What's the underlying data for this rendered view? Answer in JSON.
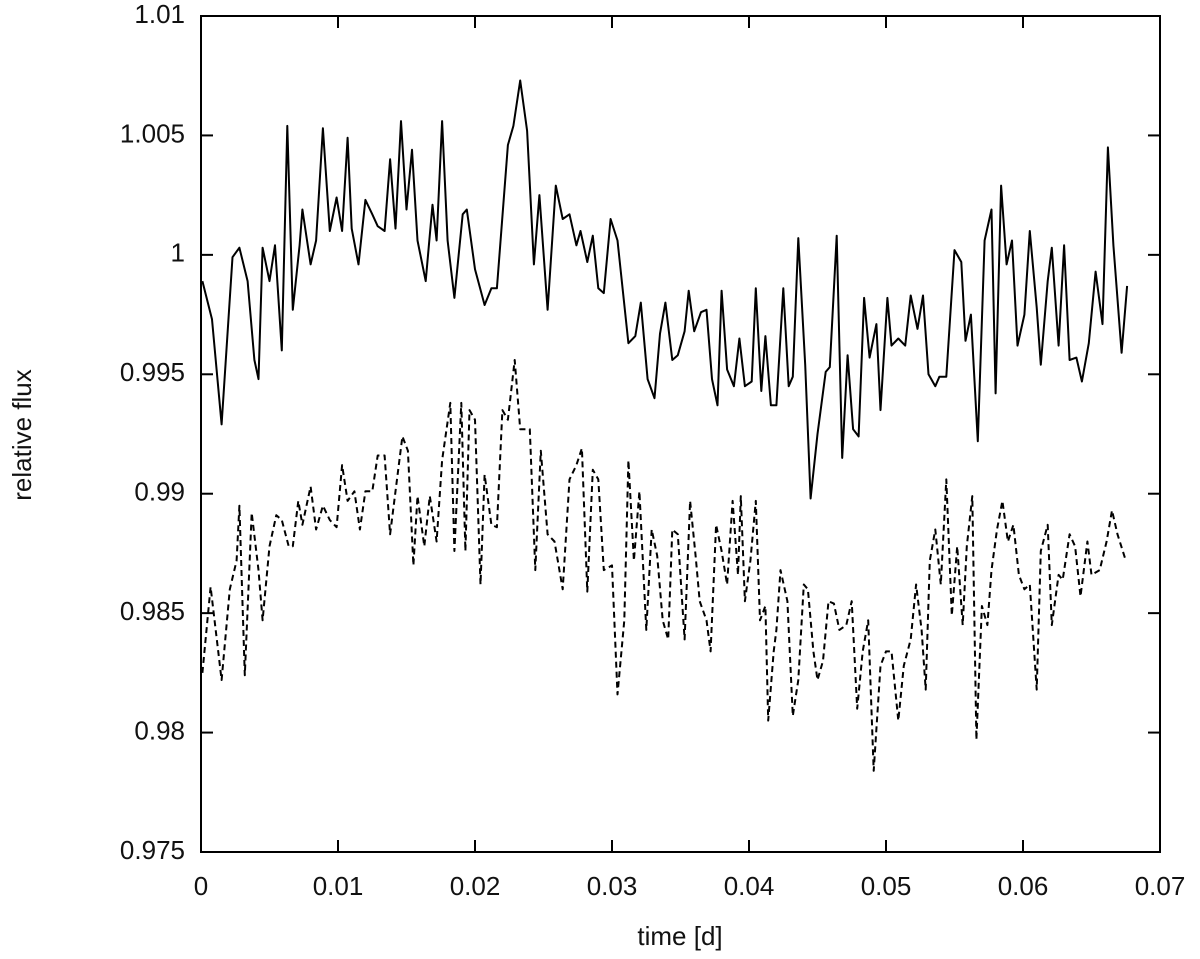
{
  "chart_data": {
    "type": "line",
    "xlabel": "time [d]",
    "ylabel": "relative flux",
    "xlim": [
      0,
      0.07
    ],
    "ylim": [
      0.975,
      1.01
    ],
    "xticks": [
      0,
      0.01,
      0.02,
      0.03,
      0.04,
      0.05,
      0.06,
      0.07
    ],
    "yticks": [
      0.975,
      0.98,
      0.985,
      0.99,
      0.995,
      1,
      1.005,
      1.01
    ],
    "series": [
      {
        "color": "#000000",
        "dashed": false,
        "x": [
          0.0001,
          0.0008,
          0.0015,
          0.0023,
          0.0028,
          0.0034,
          0.0039,
          0.0042,
          0.0045,
          0.005,
          0.0054,
          0.0059,
          0.0063,
          0.0067,
          0.0072,
          0.0074,
          0.008,
          0.0084,
          0.0089,
          0.0094,
          0.0099,
          0.0103,
          0.0107,
          0.011,
          0.0115,
          0.012,
          0.0125,
          0.0129,
          0.0134,
          0.0138,
          0.0142,
          0.0146,
          0.015,
          0.0154,
          0.0158,
          0.0164,
          0.0169,
          0.0172,
          0.0176,
          0.018,
          0.0185,
          0.0191,
          0.0194,
          0.02,
          0.0207,
          0.0212,
          0.0216,
          0.0224,
          0.0228,
          0.0233,
          0.0238,
          0.0243,
          0.0247,
          0.0253,
          0.0259,
          0.0264,
          0.0269,
          0.0274,
          0.0277,
          0.0282,
          0.0286,
          0.029,
          0.0294,
          0.0299,
          0.0304,
          0.0312,
          0.0317,
          0.0321,
          0.0326,
          0.0331,
          0.0335,
          0.0339,
          0.0344,
          0.0348,
          0.0353,
          0.0356,
          0.036,
          0.0365,
          0.0369,
          0.0373,
          0.0377,
          0.038,
          0.0384,
          0.0389,
          0.0393,
          0.0397,
          0.0402,
          0.0405,
          0.0409,
          0.0412,
          0.0416,
          0.042,
          0.0425,
          0.0429,
          0.0432,
          0.0436,
          0.0441,
          0.0445,
          0.045,
          0.0456,
          0.0459,
          0.0464,
          0.0468,
          0.0472,
          0.0476,
          0.048,
          0.0484,
          0.0488,
          0.0493,
          0.0496,
          0.0501,
          0.0504,
          0.0509,
          0.0514,
          0.0518,
          0.0523,
          0.0527,
          0.0531,
          0.0536,
          0.0539,
          0.0544,
          0.055,
          0.0555,
          0.0558,
          0.0562,
          0.0567,
          0.0572,
          0.0577,
          0.058,
          0.0584,
          0.0588,
          0.0592,
          0.0596,
          0.0601,
          0.0605,
          0.061,
          0.0613,
          0.0618,
          0.0621,
          0.0626,
          0.063,
          0.0634,
          0.0639,
          0.0643,
          0.0648,
          0.0653,
          0.0658,
          0.0662,
          0.0666,
          0.0672,
          0.0676
        ],
        "values": [
          0.9989,
          0.9973,
          0.9929,
          0.9999,
          1.0003,
          0.9989,
          0.9956,
          0.9948,
          1.0003,
          0.9989,
          1.0004,
          0.996,
          1.0054,
          0.9977,
          1.0004,
          1.0019,
          0.9996,
          1.0006,
          1.0053,
          1.001,
          1.0024,
          1.001,
          1.0049,
          1.0011,
          0.9996,
          1.0023,
          1.0017,
          1.0012,
          1.001,
          1.004,
          1.0011,
          1.0056,
          1.0019,
          1.0044,
          1.0006,
          0.9989,
          1.0021,
          1.0006,
          1.0056,
          1.0006,
          0.9982,
          1.0017,
          1.0019,
          0.9994,
          0.9979,
          0.9986,
          0.9986,
          1.0046,
          1.0054,
          1.0073,
          1.0052,
          0.9996,
          1.0025,
          0.9977,
          1.0029,
          1.0015,
          1.0017,
          1.0004,
          1.001,
          0.9997,
          1.0008,
          0.9986,
          0.9984,
          1.0015,
          1.0006,
          0.9963,
          0.9966,
          0.998,
          0.9948,
          0.994,
          0.9967,
          0.998,
          0.9956,
          0.9958,
          0.9968,
          0.9985,
          0.9968,
          0.9976,
          0.9977,
          0.9948,
          0.9937,
          0.9985,
          0.9952,
          0.9945,
          0.9965,
          0.9945,
          0.9947,
          0.9986,
          0.9943,
          0.9966,
          0.9937,
          0.9937,
          0.9986,
          0.9945,
          0.9949,
          1.0007,
          0.9954,
          0.9898,
          0.9925,
          0.9951,
          0.9953,
          1.0008,
          0.9915,
          0.9958,
          0.9927,
          0.9924,
          0.9982,
          0.9957,
          0.9971,
          0.9935,
          0.9982,
          0.9962,
          0.9965,
          0.9962,
          0.9983,
          0.9969,
          0.9983,
          0.995,
          0.9945,
          0.9949,
          0.9949,
          1.0002,
          0.9997,
          0.9964,
          0.9975,
          0.9922,
          1.0006,
          1.0019,
          0.9942,
          1.0029,
          0.9996,
          1.0006,
          0.9962,
          0.9975,
          1.001,
          0.9978,
          0.9954,
          0.9989,
          1.0003,
          0.9962,
          1.0004,
          0.9956,
          0.9957,
          0.9947,
          0.9963,
          0.9993,
          0.9971,
          1.0045,
          1.0004,
          0.9959,
          0.9987
        ]
      },
      {
        "color": "#000000",
        "dashed": true,
        "x": [
          0.0001,
          0.0007,
          0.0015,
          0.0021,
          0.0026,
          0.0028,
          0.0032,
          0.0037,
          0.0042,
          0.0045,
          0.005,
          0.0055,
          0.0059,
          0.0064,
          0.0067,
          0.0071,
          0.0074,
          0.008,
          0.0084,
          0.0089,
          0.0094,
          0.0099,
          0.0103,
          0.0107,
          0.0112,
          0.0116,
          0.012,
          0.0125,
          0.0129,
          0.0134,
          0.0138,
          0.0142,
          0.0147,
          0.0151,
          0.0155,
          0.0158,
          0.0163,
          0.0167,
          0.0172,
          0.0176,
          0.0182,
          0.0185,
          0.019,
          0.0193,
          0.0196,
          0.02,
          0.0204,
          0.0207,
          0.0212,
          0.0216,
          0.022,
          0.0224,
          0.0229,
          0.0233,
          0.024,
          0.0244,
          0.0248,
          0.0253,
          0.0258,
          0.0264,
          0.0269,
          0.0274,
          0.0278,
          0.0282,
          0.0286,
          0.029,
          0.0294,
          0.03,
          0.0304,
          0.0309,
          0.0312,
          0.0316,
          0.032,
          0.0325,
          0.0329,
          0.0333,
          0.0337,
          0.0341,
          0.0344,
          0.0348,
          0.0353,
          0.0357,
          0.0361,
          0.0364,
          0.0369,
          0.0372,
          0.0376,
          0.038,
          0.0384,
          0.0388,
          0.0392,
          0.0394,
          0.0397,
          0.0401,
          0.0405,
          0.0408,
          0.0412,
          0.0414,
          0.0418,
          0.042,
          0.0423,
          0.0428,
          0.0432,
          0.0436,
          0.044,
          0.0443,
          0.0447,
          0.045,
          0.0454,
          0.0458,
          0.0462,
          0.0466,
          0.0471,
          0.0475,
          0.0479,
          0.0483,
          0.0487,
          0.0491,
          0.0496,
          0.05,
          0.0504,
          0.0509,
          0.0513,
          0.0518,
          0.0522,
          0.0526,
          0.0529,
          0.0532,
          0.0536,
          0.054,
          0.0544,
          0.0548,
          0.0552,
          0.0556,
          0.0559,
          0.0563,
          0.0566,
          0.057,
          0.0574,
          0.0577,
          0.0581,
          0.0585,
          0.0589,
          0.0593,
          0.0597,
          0.0601,
          0.0605,
          0.061,
          0.0613,
          0.0618,
          0.0621,
          0.0626,
          0.0629,
          0.0634,
          0.0638,
          0.0642,
          0.0647,
          0.065,
          0.0656,
          0.0661,
          0.0665,
          0.0669,
          0.0675
        ],
        "values": [
          0.9825,
          0.9861,
          0.9822,
          0.986,
          0.9872,
          0.9895,
          0.9824,
          0.9892,
          0.9868,
          0.9847,
          0.9878,
          0.9891,
          0.9889,
          0.9878,
          0.9878,
          0.9897,
          0.9887,
          0.9903,
          0.9885,
          0.9895,
          0.9889,
          0.9886,
          0.9912,
          0.9897,
          0.9901,
          0.9885,
          0.9901,
          0.9901,
          0.9916,
          0.9916,
          0.9883,
          0.9901,
          0.9924,
          0.9918,
          0.987,
          0.9899,
          0.9878,
          0.9899,
          0.988,
          0.9914,
          0.9938,
          0.9876,
          0.9938,
          0.9876,
          0.9935,
          0.9931,
          0.9862,
          0.9908,
          0.9887,
          0.9886,
          0.9935,
          0.9931,
          0.9956,
          0.9927,
          0.9927,
          0.9868,
          0.9918,
          0.9883,
          0.988,
          0.986,
          0.9906,
          0.9912,
          0.9919,
          0.9859,
          0.991,
          0.9906,
          0.9868,
          0.987,
          0.9816,
          0.9847,
          0.9914,
          0.9872,
          0.9901,
          0.9843,
          0.9885,
          0.9874,
          0.9847,
          0.9839,
          0.9885,
          0.9883,
          0.9839,
          0.9897,
          0.9874,
          0.9855,
          0.9847,
          0.9834,
          0.9887,
          0.9876,
          0.9862,
          0.9897,
          0.9866,
          0.9899,
          0.9855,
          0.9872,
          0.9897,
          0.9847,
          0.9853,
          0.9805,
          0.9834,
          0.9843,
          0.9868,
          0.9855,
          0.9807,
          0.9822,
          0.9862,
          0.986,
          0.9834,
          0.9822,
          0.983,
          0.9855,
          0.9854,
          0.9843,
          0.9845,
          0.9855,
          0.981,
          0.9834,
          0.9847,
          0.9784,
          0.9828,
          0.9834,
          0.9834,
          0.9805,
          0.9828,
          0.9839,
          0.9862,
          0.9843,
          0.9818,
          0.9872,
          0.9885,
          0.9862,
          0.9906,
          0.9849,
          0.9878,
          0.9845,
          0.9878,
          0.9899,
          0.9797,
          0.9853,
          0.9845,
          0.9868,
          0.9885,
          0.9897,
          0.988,
          0.9887,
          0.9866,
          0.986,
          0.9862,
          0.9818,
          0.9876,
          0.9887,
          0.9845,
          0.9866,
          0.9864,
          0.9883,
          0.9878,
          0.9857,
          0.988,
          0.9866,
          0.9868,
          0.988,
          0.9893,
          0.9883,
          0.9872
        ]
      }
    ]
  }
}
